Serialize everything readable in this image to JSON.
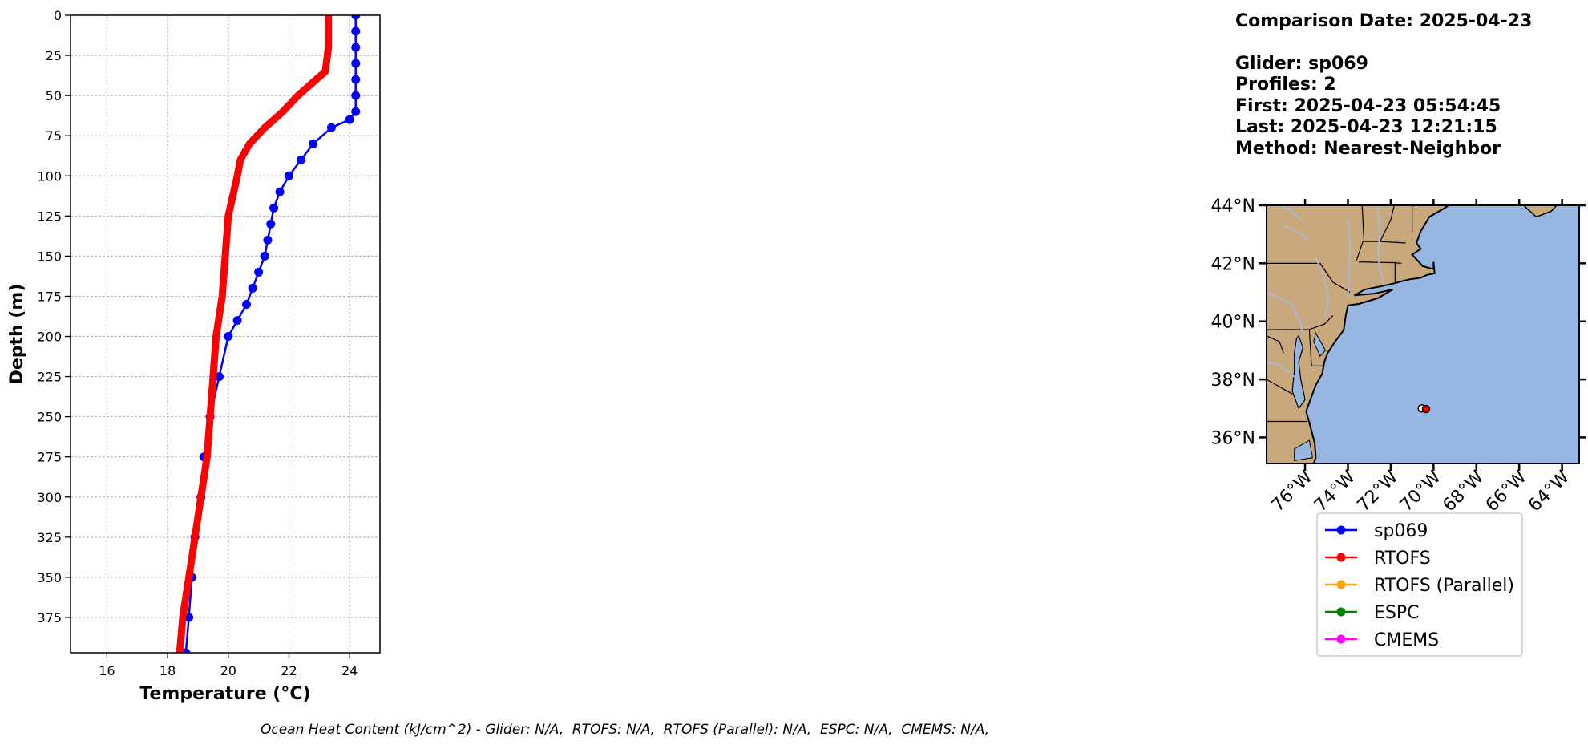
{
  "info": {
    "comparison_date": "Comparison Date: 2025-04-23",
    "glider": "Glider: sp069",
    "profiles": "Profiles: 2",
    "first": "First: 2025-04-23 05:54:45",
    "last": "Last: 2025-04-23 12:21:15",
    "method": "Method: Nearest-Neighbor"
  },
  "footer": "Ocean Heat Content (kJ/cm^2) - Glider: N/A,  RTOFS: N/A,  RTOFS (Parallel): N/A,  ESPC: N/A,  CMEMS: N/A,",
  "colors": {
    "sp069": "#0000ff",
    "glider_raw": "#00ffff",
    "RTOFS": "#ff0000",
    "RTOFS (Parallel)": "#ffa500",
    "ESPC": "#008000",
    "CMEMS": "#ff00ff",
    "land": "#c9a97c",
    "ocean": "#97b6e1"
  },
  "legend": {
    "placement": "below-map",
    "entries": [
      "sp069",
      "RTOFS",
      "RTOFS (Parallel)",
      "ESPC",
      "CMEMS"
    ]
  },
  "chart_data": [
    {
      "type": "line",
      "xlabel": "Temperature (°C)",
      "ylabel": "Depth (m)",
      "xlim": [
        14.8,
        25.0
      ],
      "ylim": [
        397,
        0
      ],
      "xticks": [
        16,
        18,
        20,
        22,
        24
      ],
      "yticks": [
        0,
        25,
        50,
        75,
        100,
        125,
        150,
        175,
        200,
        225,
        250,
        275,
        300,
        325,
        350,
        375
      ],
      "grid": true,
      "series": [
        {
          "name": "sp069",
          "depth": [
            0,
            10,
            20,
            30,
            40,
            50,
            60,
            65,
            70,
            80,
            90,
            100,
            110,
            120,
            130,
            140,
            150,
            160,
            170,
            180,
            190,
            200,
            225,
            250,
            275,
            300,
            325,
            350,
            375,
            397
          ],
          "values": [
            24.2,
            24.2,
            24.2,
            24.2,
            24.2,
            24.2,
            24.2,
            24.0,
            23.4,
            22.8,
            22.4,
            22.0,
            21.7,
            21.5,
            21.4,
            21.3,
            21.2,
            21.0,
            20.8,
            20.6,
            20.3,
            20.0,
            19.7,
            19.4,
            19.2,
            19.1,
            18.9,
            18.8,
            18.7,
            18.6
          ]
        },
        {
          "name": "RTOFS",
          "depth": [
            0,
            20,
            35,
            40,
            50,
            60,
            70,
            80,
            90,
            100,
            125,
            150,
            175,
            200,
            225,
            250,
            275,
            300,
            325,
            350,
            375,
            397
          ],
          "values": [
            23.3,
            23.3,
            23.2,
            22.9,
            22.3,
            21.8,
            21.2,
            20.7,
            20.4,
            20.3,
            20.0,
            19.9,
            19.8,
            19.6,
            19.5,
            19.4,
            19.3,
            19.1,
            18.9,
            18.7,
            18.5,
            18.4
          ]
        }
      ]
    }
  ]
}
